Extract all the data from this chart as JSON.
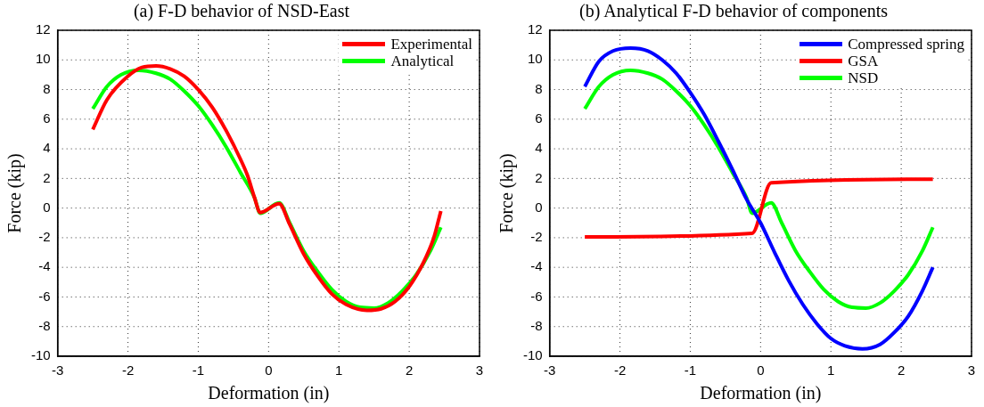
{
  "chart_data": [
    {
      "type": "line",
      "title": "(a) F-D behavior of NSD-East",
      "xlabel": "Deformation (in)",
      "ylabel": "Force (kip)",
      "xlim": [
        -3,
        3
      ],
      "xticks": [
        -3,
        -2,
        -1,
        0,
        1,
        2,
        3
      ],
      "ylim": [
        -10,
        12
      ],
      "yticks": [
        -10,
        -8,
        -6,
        -4,
        -2,
        0,
        2,
        4,
        6,
        8,
        10,
        12
      ],
      "grid": true,
      "legend": "top right",
      "marker": "none",
      "line_style": "solid",
      "series": [
        {
          "name": "Experimental",
          "color": "#ff0000",
          "x": [
            -2.5,
            -2.3,
            -2.0,
            -1.8,
            -1.6,
            -1.4,
            -1.2,
            -1.0,
            -0.8,
            -0.6,
            -0.4,
            -0.3,
            -0.2,
            -0.12,
            0.15,
            0.3,
            0.5,
            0.7,
            0.9,
            1.1,
            1.4,
            1.6,
            1.8,
            2.0,
            2.2,
            2.35,
            2.45
          ],
          "values": [
            5.3,
            7.3,
            8.9,
            9.5,
            9.6,
            9.4,
            8.9,
            8.0,
            6.8,
            5.2,
            3.3,
            2.2,
            0.7,
            -0.3,
            0.3,
            -1.1,
            -3.1,
            -4.6,
            -5.8,
            -6.5,
            -6.9,
            -6.8,
            -6.3,
            -5.3,
            -3.7,
            -2.0,
            -0.2
          ]
        },
        {
          "name": "Analytical",
          "color": "#00ff00",
          "x": [
            -2.5,
            -2.3,
            -2.1,
            -1.85,
            -1.6,
            -1.4,
            -1.2,
            -1.0,
            -0.8,
            -0.6,
            -0.4,
            -0.2,
            -0.12,
            0.15,
            0.3,
            0.5,
            0.7,
            0.9,
            1.1,
            1.3,
            1.5,
            1.7,
            1.9,
            2.1,
            2.3,
            2.45
          ],
          "values": [
            6.7,
            8.2,
            9.0,
            9.3,
            9.1,
            8.7,
            7.9,
            6.9,
            5.6,
            4.1,
            2.4,
            0.7,
            -0.35,
            0.35,
            -1.0,
            -2.9,
            -4.3,
            -5.5,
            -6.3,
            -6.7,
            -6.75,
            -6.4,
            -5.6,
            -4.5,
            -2.9,
            -1.3
          ]
        }
      ]
    },
    {
      "type": "line",
      "title": "(b) Analytical F-D behavior of components",
      "xlabel": "Deformation (in)",
      "ylabel": "Force (kip)",
      "xlim": [
        -3,
        3
      ],
      "xticks": [
        -3,
        -2,
        -1,
        0,
        1,
        2,
        3
      ],
      "ylim": [
        -10,
        12
      ],
      "yticks": [
        -10,
        -8,
        -6,
        -4,
        -2,
        0,
        2,
        4,
        6,
        8,
        10,
        12
      ],
      "grid": true,
      "legend": "top right",
      "marker": "none",
      "line_style": "solid",
      "series": [
        {
          "name": "Compressed spring",
          "color": "#0000ff",
          "x": [
            -2.5,
            -2.3,
            -2.1,
            -1.85,
            -1.6,
            -1.4,
            -1.2,
            -1.0,
            -0.8,
            -0.6,
            -0.4,
            -0.2,
            0,
            0.2,
            0.4,
            0.6,
            0.8,
            1.0,
            1.2,
            1.45,
            1.7,
            1.9,
            2.1,
            2.3,
            2.45
          ],
          "values": [
            8.2,
            9.9,
            10.6,
            10.8,
            10.6,
            10.0,
            9.1,
            7.8,
            6.3,
            4.5,
            2.6,
            0.6,
            -1.0,
            -3.0,
            -4.9,
            -6.5,
            -7.8,
            -8.8,
            -9.3,
            -9.5,
            -9.2,
            -8.4,
            -7.3,
            -5.6,
            -4.0
          ]
        },
        {
          "name": "GSA",
          "color": "#ff0000",
          "x": [
            -2.5,
            -0.12,
            0.15,
            2.45
          ],
          "values": [
            -1.95,
            -1.7,
            1.7,
            1.95
          ]
        },
        {
          "name": "NSD",
          "color": "#00ff00",
          "x": [
            -2.5,
            -2.3,
            -2.1,
            -1.85,
            -1.6,
            -1.4,
            -1.2,
            -1.0,
            -0.8,
            -0.6,
            -0.4,
            -0.2,
            -0.12,
            0.15,
            0.3,
            0.5,
            0.7,
            0.9,
            1.1,
            1.3,
            1.5,
            1.7,
            1.9,
            2.1,
            2.3,
            2.45
          ],
          "values": [
            6.7,
            8.2,
            9.0,
            9.3,
            9.1,
            8.7,
            7.9,
            6.9,
            5.6,
            4.1,
            2.4,
            0.7,
            -0.35,
            0.35,
            -1.0,
            -2.9,
            -4.3,
            -5.5,
            -6.3,
            -6.7,
            -6.75,
            -6.4,
            -5.6,
            -4.5,
            -2.9,
            -1.3
          ]
        }
      ]
    }
  ]
}
